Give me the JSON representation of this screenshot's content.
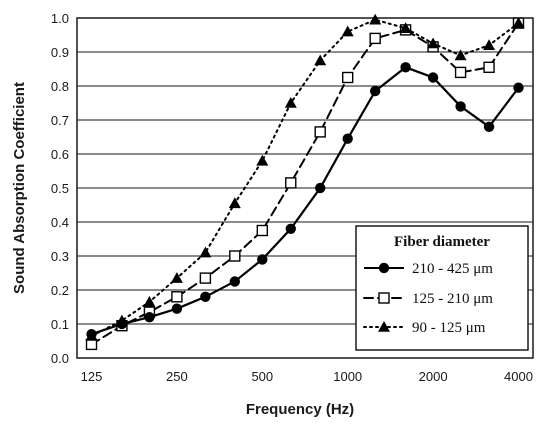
{
  "chart_data": {
    "type": "line",
    "xlabel": "Frequency (Hz)",
    "ylabel": "Sound Absorption Coefficient",
    "x_scale": "log",
    "x_ticks": [
      125,
      250,
      500,
      1000,
      2000,
      4000
    ],
    "x_tick_labels": [
      "125",
      "250",
      "500",
      "1000",
      "2000",
      "4000"
    ],
    "ylim": [
      0.0,
      1.0
    ],
    "y_tick_labels": [
      "0.0",
      "0.1",
      "0.2",
      "0.3",
      "0.4",
      "0.5",
      "0.6",
      "0.7",
      "0.8",
      "0.9",
      "1.0"
    ],
    "grid": "horizontal",
    "legend_position": "bottom-right",
    "legend_title": "Fiber diameter",
    "x": [
      125,
      160,
      200,
      250,
      315,
      400,
      500,
      630,
      800,
      1000,
      1250,
      1600,
      2000,
      2500,
      3150,
      4000
    ],
    "series": [
      {
        "name": "210  -  425 μm",
        "marker": "circle-filled",
        "line": "solid",
        "color": "#000000",
        "values": [
          0.07,
          0.1,
          0.12,
          0.145,
          0.18,
          0.225,
          0.29,
          0.38,
          0.5,
          0.645,
          0.785,
          0.855,
          0.825,
          0.74,
          0.68,
          0.795
        ]
      },
      {
        "name": "125  -  210 μm",
        "marker": "square-open",
        "line": "dashed",
        "color": "#000000",
        "values": [
          0.04,
          0.095,
          0.135,
          0.18,
          0.235,
          0.3,
          0.375,
          0.515,
          0.665,
          0.825,
          0.94,
          0.965,
          0.915,
          0.84,
          0.855,
          0.985
        ]
      },
      {
        "name": "90  -  125 μm",
        "marker": "triangle-filled",
        "line": "dotted",
        "color": "#000000",
        "values": [
          0.065,
          0.11,
          0.165,
          0.235,
          0.31,
          0.455,
          0.58,
          0.75,
          0.875,
          0.96,
          0.995,
          0.97,
          0.925,
          0.89,
          0.92,
          0.985
        ]
      }
    ]
  }
}
